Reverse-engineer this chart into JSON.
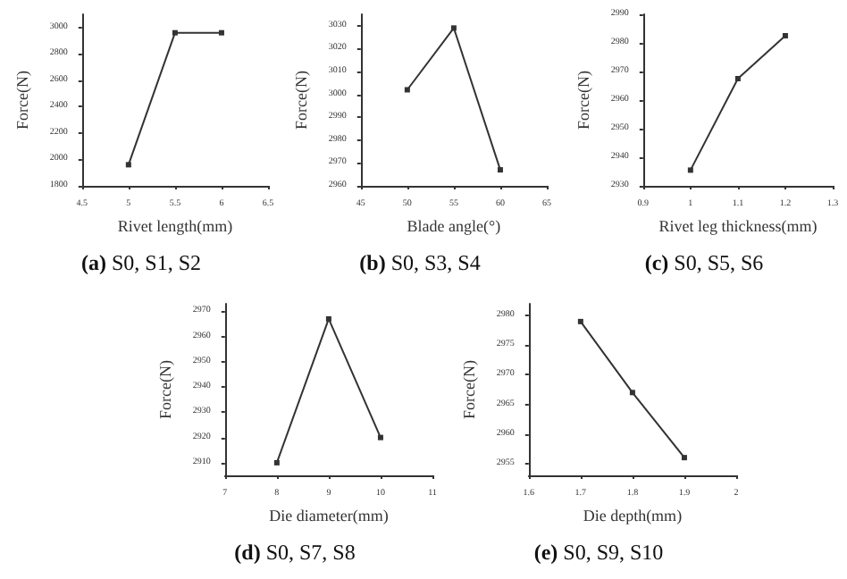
{
  "chart_data": [
    {
      "type": "line",
      "title": "(a) S0, S1, S2",
      "xlabel": "Rivet length(mm)",
      "ylabel": "Force(N)",
      "x": [
        5.0,
        5.5,
        6.0
      ],
      "values": [
        1960,
        2960,
        2960
      ],
      "color": "#333333",
      "xlim": [
        4.5,
        6.5
      ],
      "xticks": [
        4.5,
        5.0,
        5.5,
        6.0,
        6.5
      ],
      "ylim": [
        1800,
        3100
      ],
      "yticks": [
        1800,
        2000,
        2200,
        2400,
        2600,
        2800,
        3000
      ],
      "marker": "square"
    },
    {
      "type": "line",
      "title": "(b) S0, S3, S4",
      "xlabel": "Blade angle(°)",
      "ylabel": "Force(N)",
      "x": [
        50,
        55,
        60
      ],
      "values": [
        3002,
        3029,
        2967
      ],
      "color": "#333333",
      "xlim": [
        45,
        65
      ],
      "xticks": [
        45,
        50,
        55,
        60,
        65
      ],
      "ylim": [
        2960,
        3035
      ],
      "yticks": [
        2960,
        2970,
        2980,
        2990,
        3000,
        3010,
        3020,
        3030
      ],
      "marker": "square"
    },
    {
      "type": "line",
      "title": "(c) S0, S5, S6",
      "xlabel": "Rivet leg thickness(mm)",
      "ylabel": "Force(N)",
      "x": [
        1.0,
        1.1,
        1.2
      ],
      "values": [
        2935.5,
        2967.5,
        2982.5
      ],
      "color": "#333333",
      "xlim": [
        0.9,
        1.3
      ],
      "xticks": [
        0.9,
        1.0,
        1.1,
        1.2,
        1.3
      ],
      "ylim": [
        2930,
        2990
      ],
      "yticks": [
        2930,
        2940,
        2950,
        2960,
        2970,
        2980,
        2990
      ],
      "marker": "square"
    },
    {
      "type": "line",
      "title": "(d) S0, S7, S8",
      "xlabel": "Die diameter(mm)",
      "ylabel": "Force(N)",
      "x": [
        8,
        9,
        10
      ],
      "values": [
        2910,
        2967,
        2920
      ],
      "color": "#333333",
      "xlim": [
        7,
        11
      ],
      "xticks": [
        7,
        8,
        9,
        10,
        11
      ],
      "ylim": [
        2905,
        2973
      ],
      "yticks": [
        2910,
        2920,
        2930,
        2940,
        2950,
        2960,
        2970
      ],
      "marker": "square"
    },
    {
      "type": "line",
      "title": "(e) S0, S9, S10",
      "xlabel": "Die depth(mm)",
      "ylabel": "Force(N)",
      "x": [
        1.7,
        1.8,
        1.9
      ],
      "values": [
        2979,
        2967,
        2956
      ],
      "color": "#333333",
      "xlim": [
        1.6,
        2.0
      ],
      "xticks": [
        1.6,
        1.7,
        1.8,
        1.9,
        2.0
      ],
      "ylim": [
        2953,
        2982
      ],
      "yticks": [
        2955,
        2960,
        2965,
        2970,
        2975,
        2980
      ],
      "marker": "square"
    }
  ]
}
